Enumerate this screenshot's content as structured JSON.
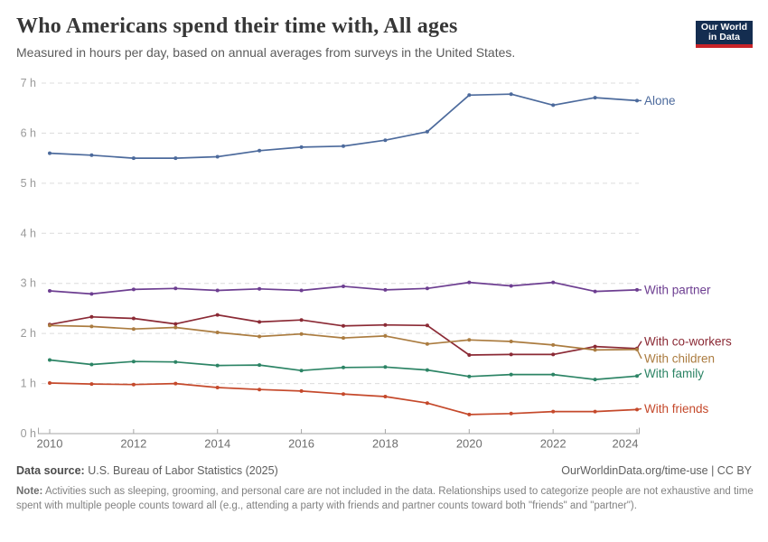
{
  "header": {
    "title": "Who Americans spend their time with, All ages",
    "subtitle": "Measured in hours per day, based on annual averages from surveys in the United States.",
    "logo": {
      "line1": "Our World",
      "line2": "in Data",
      "bg": "#142D50",
      "accent": "#C82328"
    }
  },
  "chart_data": {
    "type": "line",
    "title": "Who Americans spend their time with, All ages",
    "unit": "hours per day",
    "x": [
      2010,
      2011,
      2012,
      2013,
      2014,
      2015,
      2016,
      2017,
      2018,
      2019,
      2020,
      2021,
      2022,
      2023,
      2024
    ],
    "x_tick_labels": [
      "2010",
      "2012",
      "2014",
      "2016",
      "2018",
      "2020",
      "2022",
      "2024"
    ],
    "y_tick_labels": [
      "0 h",
      "1 h",
      "2 h",
      "3 h",
      "4 h",
      "5 h",
      "6 h",
      "7 h"
    ],
    "ylim": [
      0,
      7
    ],
    "grid": "horizontal-dashed",
    "legend_position": "line-end-labels-right",
    "series": [
      {
        "name": "Alone",
        "color": "#4C6A9C",
        "label_offset": 0,
        "values": [
          5.6,
          5.56,
          5.5,
          5.5,
          5.53,
          5.65,
          5.72,
          5.74,
          5.86,
          6.03,
          6.76,
          6.78,
          6.56,
          6.71,
          6.65
        ]
      },
      {
        "name": "With partner",
        "color": "#6D3E91",
        "label_offset": 0,
        "values": [
          2.85,
          2.79,
          2.88,
          2.9,
          2.86,
          2.89,
          2.86,
          2.94,
          2.87,
          2.9,
          3.02,
          2.95,
          3.02,
          2.84,
          2.87
        ]
      },
      {
        "name": "With co-workers",
        "color": "#8B2A35",
        "label_offset": -8,
        "values": [
          2.18,
          2.33,
          2.3,
          2.19,
          2.37,
          2.23,
          2.27,
          2.15,
          2.17,
          2.16,
          1.57,
          1.58,
          1.58,
          1.74,
          1.7
        ]
      },
      {
        "name": "With children",
        "color": "#AB7C40",
        "label_offset": 10,
        "values": [
          2.16,
          2.14,
          2.09,
          2.12,
          2.02,
          1.94,
          1.99,
          1.91,
          1.95,
          1.79,
          1.87,
          1.84,
          1.77,
          1.67,
          1.68
        ]
      },
      {
        "name": "With family",
        "color": "#2C8465",
        "label_offset": -3,
        "values": [
          1.47,
          1.38,
          1.44,
          1.43,
          1.36,
          1.37,
          1.26,
          1.32,
          1.33,
          1.27,
          1.14,
          1.18,
          1.18,
          1.08,
          1.15
        ]
      },
      {
        "name": "With friends",
        "color": "#C5492B",
        "label_offset": -1,
        "values": [
          1.01,
          0.99,
          0.98,
          1.0,
          0.92,
          0.88,
          0.85,
          0.79,
          0.74,
          0.61,
          0.38,
          0.4,
          0.44,
          0.44,
          0.48
        ]
      }
    ]
  },
  "footer": {
    "source_label": "Data source:",
    "source_text": "U.S. Bureau of Labor Statistics (2025)",
    "rights": "OurWorldinData.org/time-use | CC BY",
    "note_label": "Note:",
    "note_text": "Activities such as sleeping, grooming, and personal care are not included in the data. Relationships used to categorize people are not exhaustive and time spent with multiple people counts toward all (e.g., attending a party with friends and partner counts toward both \"friends\" and \"partner\")."
  }
}
